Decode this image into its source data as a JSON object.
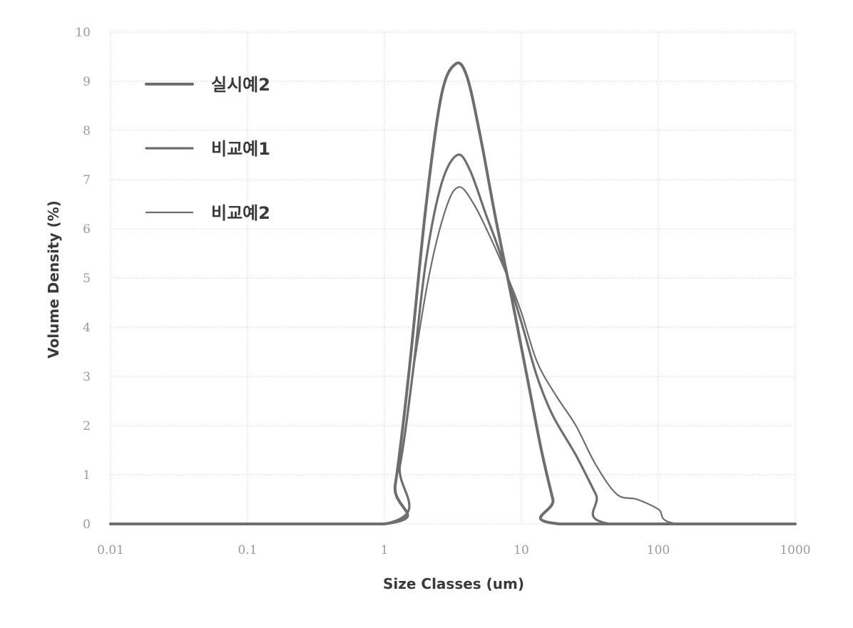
{
  "chart_data": {
    "type": "line",
    "title": "",
    "xlabel": "Size Classes (um)",
    "ylabel": "Volume Density (%)",
    "x_scale": "log",
    "xlim": [
      0.01,
      1000
    ],
    "ylim": [
      0,
      10
    ],
    "x_ticks": [
      "0.01",
      "0.1",
      "1",
      "10",
      "100",
      "1000"
    ],
    "x_tick_values": [
      0.01,
      0.1,
      1,
      10,
      100,
      1000
    ],
    "y_ticks": [
      "0",
      "1",
      "2",
      "3",
      "4",
      "5",
      "6",
      "7",
      "8",
      "9",
      "10"
    ],
    "y_tick_values": [
      0,
      1,
      2,
      3,
      4,
      5,
      6,
      7,
      8,
      9,
      10
    ],
    "grid": true,
    "legend_position": "top-left",
    "line_color": "#6e6e6e",
    "series": [
      {
        "name": "실시예2",
        "points": [
          [
            0.01,
            0
          ],
          [
            1.0,
            0
          ],
          [
            1.2,
            0.8
          ],
          [
            1.5,
            3.0
          ],
          [
            2.0,
            6.4
          ],
          [
            2.6,
            8.7
          ],
          [
            3.3,
            9.35
          ],
          [
            4.0,
            9.1
          ],
          [
            5.0,
            7.9
          ],
          [
            6.5,
            6.2
          ],
          [
            8.5,
            4.6
          ],
          [
            11,
            3.0
          ],
          [
            14,
            1.5
          ],
          [
            17,
            0.5
          ],
          [
            19,
            0
          ],
          [
            1000,
            0
          ]
        ]
      },
      {
        "name": "비교예1",
        "points": [
          [
            0.01,
            0
          ],
          [
            1.0,
            0
          ],
          [
            1.3,
            1.2
          ],
          [
            1.6,
            3.0
          ],
          [
            2.0,
            5.3
          ],
          [
            2.6,
            6.9
          ],
          [
            3.4,
            7.5
          ],
          [
            4.2,
            7.2
          ],
          [
            5.5,
            6.3
          ],
          [
            7.0,
            5.5
          ],
          [
            10,
            4.1
          ],
          [
            13,
            3.0
          ],
          [
            17,
            2.2
          ],
          [
            25,
            1.4
          ],
          [
            35,
            0.6
          ],
          [
            45,
            0
          ],
          [
            1000,
            0
          ]
        ]
      },
      {
        "name": "비교예2",
        "points": [
          [
            0.01,
            0
          ],
          [
            1.0,
            0
          ],
          [
            1.3,
            1.2
          ],
          [
            1.6,
            3.0
          ],
          [
            2.1,
            5.0
          ],
          [
            2.8,
            6.4
          ],
          [
            3.5,
            6.85
          ],
          [
            4.5,
            6.5
          ],
          [
            6.0,
            5.8
          ],
          [
            8.0,
            5.0
          ],
          [
            10,
            4.3
          ],
          [
            13,
            3.3
          ],
          [
            18,
            2.6
          ],
          [
            25,
            2.0
          ],
          [
            35,
            1.2
          ],
          [
            50,
            0.6
          ],
          [
            70,
            0.5
          ],
          [
            100,
            0.3
          ],
          [
            140,
            0
          ],
          [
            1000,
            0
          ]
        ]
      }
    ]
  }
}
